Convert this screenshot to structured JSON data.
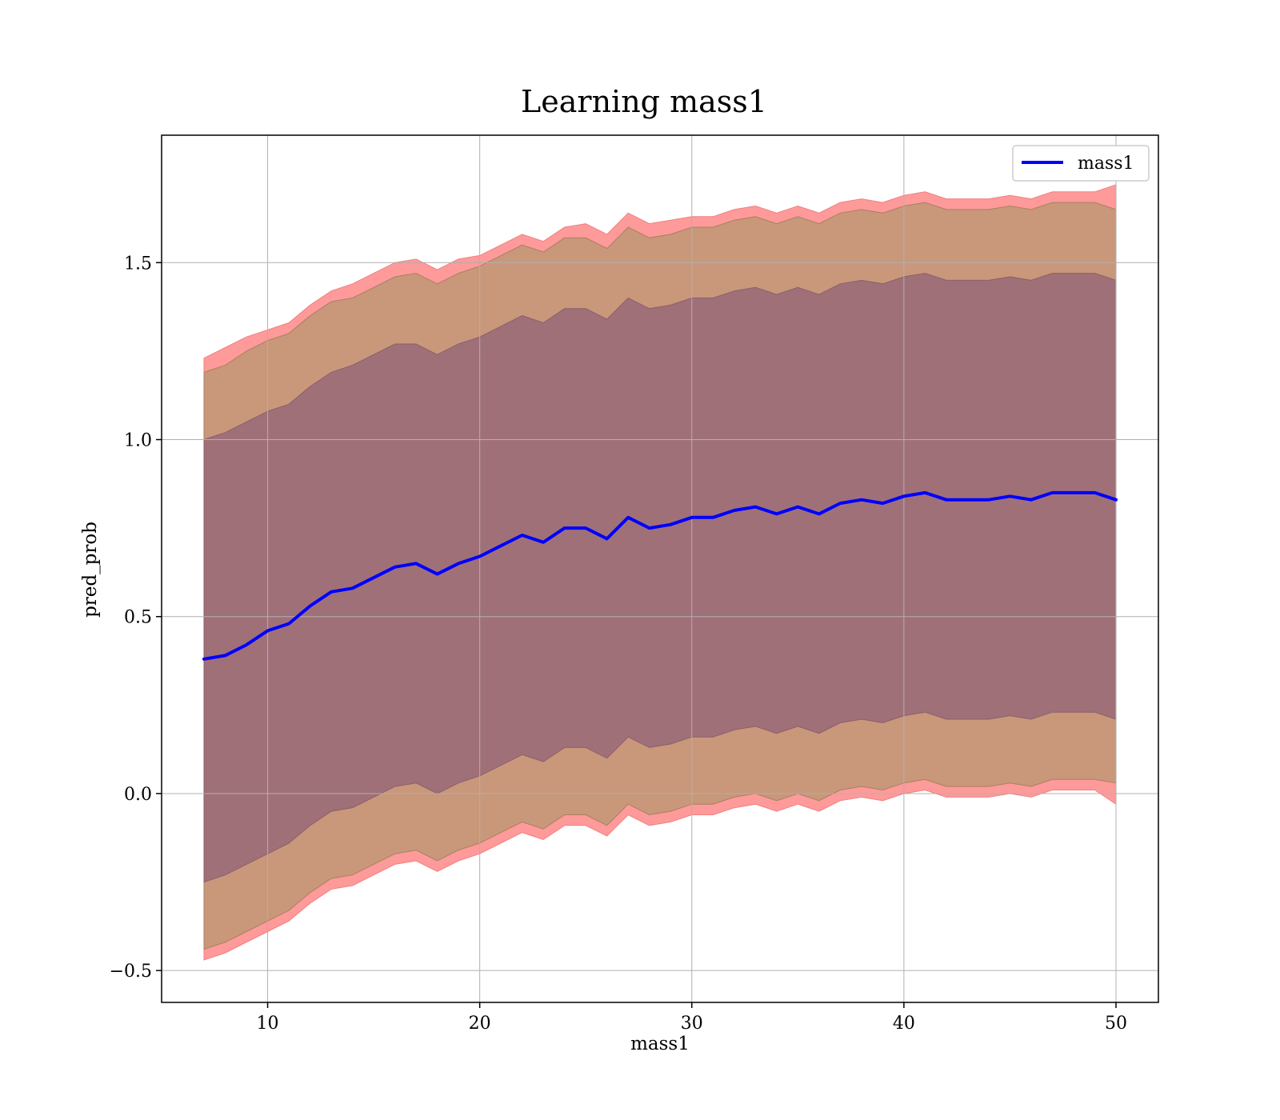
{
  "chart_data": {
    "type": "line",
    "title": "Learning mass1",
    "xlabel": "mass1",
    "ylabel": "pred_prob",
    "xlim": [
      5,
      52
    ],
    "ylim": [
      -0.59,
      1.86
    ],
    "xticks": [
      10,
      20,
      30,
      40,
      50
    ],
    "yticks": [
      -0.5,
      0.0,
      0.5,
      1.0,
      1.5
    ],
    "xtick_labels": [
      "10",
      "20",
      "30",
      "40",
      "50"
    ],
    "ytick_labels": [
      "−0.5",
      "0.0",
      "0.5",
      "1.0",
      "1.5"
    ],
    "grid": true,
    "legend": {
      "position": "top-right",
      "entries": [
        "mass1"
      ]
    },
    "colors": {
      "line": "#0000ff",
      "band_outer": "#ff9a9a",
      "band_middle": "#c9977a",
      "band_inner": "#a07079"
    },
    "x": [
      7,
      8,
      9,
      10,
      11,
      12,
      13,
      14,
      15,
      16,
      17,
      18,
      19,
      20,
      21,
      22,
      23,
      24,
      25,
      26,
      27,
      28,
      29,
      30,
      31,
      32,
      33,
      34,
      35,
      36,
      37,
      38,
      39,
      40,
      41,
      42,
      43,
      44,
      45,
      46,
      47,
      48,
      49,
      50
    ],
    "series": [
      {
        "name": "mass1",
        "values": [
          0.38,
          0.39,
          0.42,
          0.46,
          0.48,
          0.53,
          0.57,
          0.58,
          0.61,
          0.64,
          0.65,
          0.62,
          0.65,
          0.67,
          0.7,
          0.73,
          0.71,
          0.75,
          0.75,
          0.72,
          0.78,
          0.75,
          0.76,
          0.78,
          0.78,
          0.8,
          0.81,
          0.79,
          0.81,
          0.79,
          0.82,
          0.83,
          0.82,
          0.84,
          0.85,
          0.83,
          0.83,
          0.83,
          0.84,
          0.83,
          0.85,
          0.85,
          0.85,
          0.83
        ]
      }
    ],
    "bands": [
      {
        "level": "outer",
        "upper": [
          1.23,
          1.26,
          1.29,
          1.31,
          1.33,
          1.38,
          1.42,
          1.44,
          1.47,
          1.5,
          1.51,
          1.48,
          1.51,
          1.52,
          1.55,
          1.58,
          1.56,
          1.6,
          1.61,
          1.58,
          1.64,
          1.61,
          1.62,
          1.63,
          1.63,
          1.65,
          1.66,
          1.64,
          1.66,
          1.64,
          1.67,
          1.68,
          1.67,
          1.69,
          1.7,
          1.68,
          1.68,
          1.68,
          1.69,
          1.68,
          1.7,
          1.7,
          1.7,
          1.72
        ],
        "lower": [
          -0.47,
          -0.45,
          -0.42,
          -0.39,
          -0.36,
          -0.31,
          -0.27,
          -0.26,
          -0.23,
          -0.2,
          -0.19,
          -0.22,
          -0.19,
          -0.17,
          -0.14,
          -0.11,
          -0.13,
          -0.09,
          -0.09,
          -0.12,
          -0.06,
          -0.09,
          -0.08,
          -0.06,
          -0.06,
          -0.04,
          -0.03,
          -0.05,
          -0.03,
          -0.05,
          -0.02,
          -0.01,
          -0.02,
          0.0,
          0.01,
          -0.01,
          -0.01,
          -0.01,
          0.0,
          -0.01,
          0.01,
          0.01,
          0.01,
          -0.03
        ]
      },
      {
        "level": "middle",
        "upper": [
          1.19,
          1.21,
          1.25,
          1.28,
          1.3,
          1.35,
          1.39,
          1.4,
          1.43,
          1.46,
          1.47,
          1.44,
          1.47,
          1.49,
          1.52,
          1.55,
          1.53,
          1.57,
          1.57,
          1.54,
          1.6,
          1.57,
          1.58,
          1.6,
          1.6,
          1.62,
          1.63,
          1.61,
          1.63,
          1.61,
          1.64,
          1.65,
          1.64,
          1.66,
          1.67,
          1.65,
          1.65,
          1.65,
          1.66,
          1.65,
          1.67,
          1.67,
          1.67,
          1.65
        ],
        "lower": [
          -0.44,
          -0.42,
          -0.39,
          -0.36,
          -0.33,
          -0.28,
          -0.24,
          -0.23,
          -0.2,
          -0.17,
          -0.16,
          -0.19,
          -0.16,
          -0.14,
          -0.11,
          -0.08,
          -0.1,
          -0.06,
          -0.06,
          -0.09,
          -0.03,
          -0.06,
          -0.05,
          -0.03,
          -0.03,
          -0.01,
          0.0,
          -0.02,
          0.0,
          -0.02,
          0.01,
          0.02,
          0.01,
          0.03,
          0.04,
          0.02,
          0.02,
          0.02,
          0.03,
          0.02,
          0.04,
          0.04,
          0.04,
          0.03
        ]
      },
      {
        "level": "inner",
        "upper": [
          1.0,
          1.02,
          1.05,
          1.08,
          1.1,
          1.15,
          1.19,
          1.21,
          1.24,
          1.27,
          1.27,
          1.24,
          1.27,
          1.29,
          1.32,
          1.35,
          1.33,
          1.37,
          1.37,
          1.34,
          1.4,
          1.37,
          1.38,
          1.4,
          1.4,
          1.42,
          1.43,
          1.41,
          1.43,
          1.41,
          1.44,
          1.45,
          1.44,
          1.46,
          1.47,
          1.45,
          1.45,
          1.45,
          1.46,
          1.45,
          1.47,
          1.47,
          1.47,
          1.45
        ],
        "lower": [
          -0.25,
          -0.23,
          -0.2,
          -0.17,
          -0.14,
          -0.09,
          -0.05,
          -0.04,
          -0.01,
          0.02,
          0.03,
          0.0,
          0.03,
          0.05,
          0.08,
          0.11,
          0.09,
          0.13,
          0.13,
          0.1,
          0.16,
          0.13,
          0.14,
          0.16,
          0.16,
          0.18,
          0.19,
          0.17,
          0.19,
          0.17,
          0.2,
          0.21,
          0.2,
          0.22,
          0.23,
          0.21,
          0.21,
          0.21,
          0.22,
          0.21,
          0.23,
          0.23,
          0.23,
          0.21
        ]
      }
    ]
  }
}
